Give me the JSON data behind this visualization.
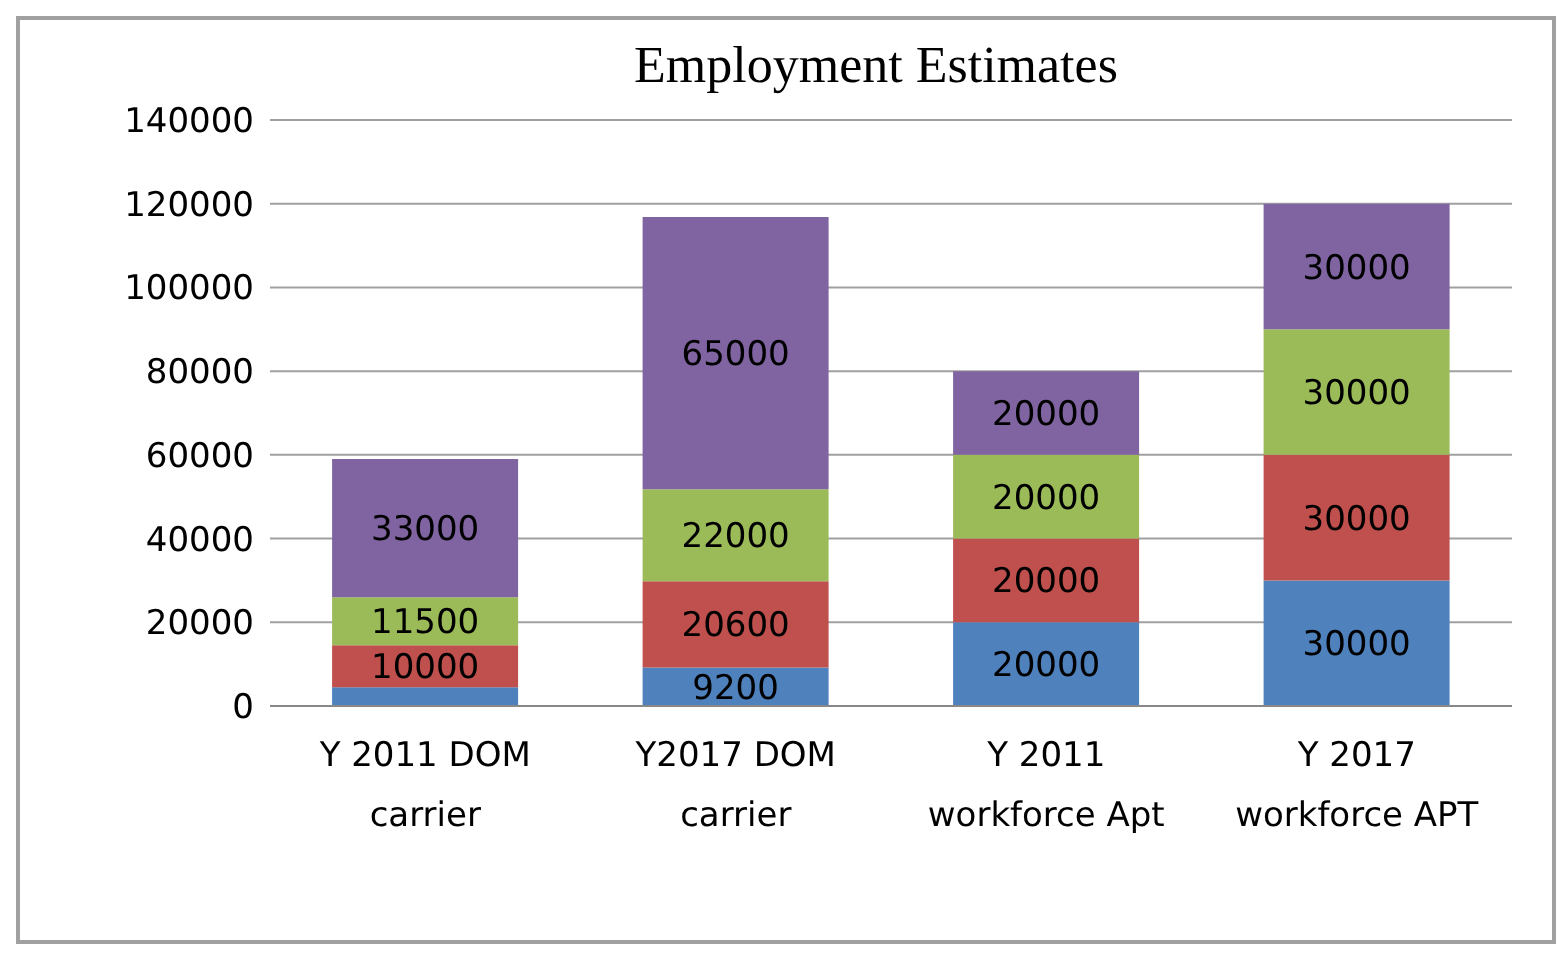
{
  "chart_data": {
    "type": "bar",
    "title": "Employment Estimates",
    "stacked": true,
    "grid": "y",
    "categories": [
      "Y 2011 DOM\ncarrier",
      "Y2017 DOM\ncarrier",
      "Y 2011\nworkforce Apt",
      "Y 2017\nworkforce APT"
    ],
    "ylim": [
      0,
      140000
    ],
    "yticks": [
      0,
      20000,
      40000,
      60000,
      80000,
      100000,
      120000,
      140000
    ],
    "series": [
      {
        "color": "#4f81bd",
        "values": [
          4500,
          9200,
          20000,
          30000
        ],
        "value_labels": [
          null,
          "9200",
          "20000",
          "30000"
        ]
      },
      {
        "color": "#c0504d",
        "values": [
          10000,
          20600,
          20000,
          30000
        ],
        "value_labels": [
          "10000",
          "20600",
          "20000",
          "30000"
        ]
      },
      {
        "color": "#9bbb59",
        "values": [
          11500,
          22000,
          20000,
          30000
        ],
        "value_labels": [
          "11500",
          "22000",
          "20000",
          "30000"
        ]
      },
      {
        "color": "#8064a2",
        "values": [
          33000,
          65000,
          20000,
          30000
        ],
        "value_labels": [
          "33000",
          "65000",
          "20000",
          "30000"
        ]
      }
    ]
  }
}
